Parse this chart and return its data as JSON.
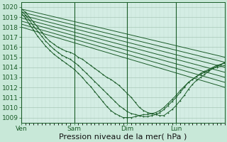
{
  "title": "",
  "xlabel": "Pression niveau de la mer( hPa )",
  "xlim": [
    0,
    100
  ],
  "ylim": [
    1008.5,
    1020.5
  ],
  "yticks": [
    1009,
    1010,
    1011,
    1012,
    1013,
    1014,
    1015,
    1016,
    1017,
    1018,
    1019,
    1020
  ],
  "xticks": [
    0,
    26,
    52,
    76
  ],
  "xticklabels": [
    "Ven",
    "Sam",
    "Dim",
    "Lun"
  ],
  "bg_color": "#d4ede4",
  "grid_major_color": "#a8c8b8",
  "grid_minor_color": "#c0ddd0",
  "line_color": "#1a5c28",
  "straight_lines": [
    {
      "x": [
        0,
        100
      ],
      "y": [
        1019.8,
        1015.0
      ]
    },
    {
      "x": [
        0,
        100
      ],
      "y": [
        1019.5,
        1014.5
      ]
    },
    {
      "x": [
        0,
        100
      ],
      "y": [
        1019.2,
        1014.0
      ]
    },
    {
      "x": [
        0,
        100
      ],
      "y": [
        1018.9,
        1013.5
      ]
    },
    {
      "x": [
        0,
        100
      ],
      "y": [
        1018.6,
        1013.0
      ]
    },
    {
      "x": [
        0,
        100
      ],
      "y": [
        1018.3,
        1012.5
      ]
    },
    {
      "x": [
        0,
        100
      ],
      "y": [
        1018.0,
        1012.0
      ]
    }
  ],
  "wiggly_lines": [
    {
      "x": [
        0,
        2,
        4,
        6,
        8,
        10,
        12,
        14,
        16,
        18,
        20,
        22,
        24,
        26,
        28,
        30,
        32,
        34,
        36,
        38,
        40,
        42,
        44,
        46,
        48,
        50,
        52,
        54,
        56,
        58,
        60,
        62,
        64,
        66,
        68,
        70,
        72,
        74,
        76,
        78,
        80,
        82,
        84,
        86,
        88,
        90,
        92,
        94,
        96,
        98,
        100
      ],
      "y": [
        1019.8,
        1019.5,
        1019.0,
        1018.5,
        1018.0,
        1017.5,
        1017.0,
        1016.6,
        1016.3,
        1016.0,
        1015.8,
        1015.6,
        1015.5,
        1015.3,
        1015.0,
        1014.8,
        1014.5,
        1014.2,
        1013.9,
        1013.6,
        1013.3,
        1013.0,
        1012.8,
        1012.5,
        1012.2,
        1011.8,
        1011.4,
        1011.0,
        1010.5,
        1010.0,
        1009.7,
        1009.5,
        1009.4,
        1009.3,
        1009.2,
        1009.2,
        1009.5,
        1009.8,
        1010.2,
        1010.7,
        1011.2,
        1011.8,
        1012.3,
        1012.7,
        1013.0,
        1013.3,
        1013.6,
        1013.9,
        1014.1,
        1014.3,
        1014.5
      ]
    },
    {
      "x": [
        0,
        2,
        4,
        6,
        8,
        10,
        12,
        14,
        16,
        18,
        20,
        22,
        24,
        26,
        28,
        30,
        32,
        34,
        36,
        38,
        40,
        42,
        44,
        46,
        48,
        50,
        52,
        54,
        56,
        58,
        60,
        62,
        64,
        66,
        68,
        70,
        72,
        74,
        76,
        78,
        80,
        82,
        84,
        86,
        88,
        90,
        92,
        94,
        96,
        98,
        100
      ],
      "y": [
        1019.6,
        1019.2,
        1018.7,
        1018.1,
        1017.6,
        1017.1,
        1016.6,
        1016.2,
        1015.8,
        1015.5,
        1015.2,
        1015.0,
        1014.8,
        1014.5,
        1014.2,
        1013.8,
        1013.4,
        1013.0,
        1012.6,
        1012.2,
        1011.8,
        1011.4,
        1011.0,
        1010.6,
        1010.2,
        1009.9,
        1009.6,
        1009.4,
        1009.3,
        1009.2,
        1009.1,
        1009.1,
        1009.2,
        1009.3,
        1009.5,
        1009.8,
        1010.2,
        1010.6,
        1011.0,
        1011.5,
        1012.0,
        1012.5,
        1012.8,
        1013.1,
        1013.4,
        1013.6,
        1013.8,
        1014.0,
        1014.2,
        1014.3,
        1014.4
      ]
    },
    {
      "x": [
        0,
        2,
        4,
        6,
        8,
        10,
        12,
        14,
        16,
        18,
        20,
        22,
        24,
        26,
        28,
        30,
        32,
        34,
        36,
        38,
        40,
        42,
        44,
        46,
        48,
        50,
        52,
        54,
        56,
        58,
        60,
        62,
        64,
        66,
        68,
        70,
        72,
        74,
        76,
        78,
        80,
        82,
        84,
        86,
        88,
        90,
        92,
        94,
        96,
        98,
        100
      ],
      "y": [
        1019.4,
        1018.9,
        1018.3,
        1017.7,
        1017.1,
        1016.6,
        1016.1,
        1015.7,
        1015.3,
        1015.0,
        1014.7,
        1014.4,
        1014.1,
        1013.8,
        1013.4,
        1013.0,
        1012.5,
        1012.1,
        1011.6,
        1011.1,
        1010.6,
        1010.1,
        1009.7,
        1009.4,
        1009.2,
        1009.0,
        1009.0,
        1009.0,
        1009.1,
        1009.2,
        1009.3,
        1009.3,
        1009.4,
        1009.5,
        1009.7,
        1010.0,
        1010.4,
        1010.8,
        1011.2,
        1011.7,
        1012.1,
        1012.5,
        1012.8,
        1013.1,
        1013.3,
        1013.5,
        1013.7,
        1013.9,
        1014.0,
        1014.1,
        1014.2
      ]
    }
  ],
  "marker": "+",
  "markersize": 2,
  "linewidth": 0.7,
  "xlabel_fontsize": 8,
  "tick_fontsize": 6.5,
  "fig_bg": "#c8e8d8"
}
